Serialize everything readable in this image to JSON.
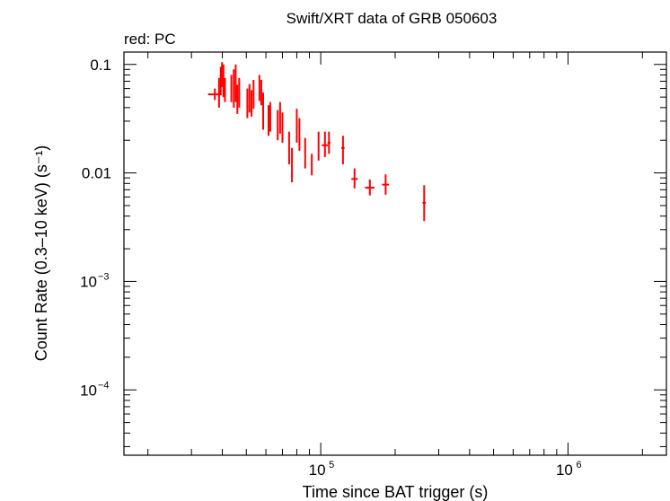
{
  "chart_data": {
    "type": "scatter",
    "title": "Swift/XRT data of GRB 050603",
    "subtitle": "red: PC",
    "xlabel": "Time since BAT trigger (s)",
    "ylabel": "Count Rate (0.3–10 keV) (s⁻¹)",
    "xscale": "log",
    "yscale": "log",
    "xlim": [
      16000,
      2500000
    ],
    "ylim": [
      2.5e-05,
      0.13
    ],
    "grid": false,
    "series_color": "#ff0000",
    "x_ticks": [
      {
        "base": "10",
        "exp": "5",
        "value": 100000
      },
      {
        "base": "10",
        "exp": "6",
        "value": 1000000
      }
    ],
    "y_ticks": [
      {
        "label": "0.1",
        "base": "",
        "exp": "",
        "value": 0.1
      },
      {
        "label": "0.01",
        "base": "",
        "exp": "",
        "value": 0.01
      },
      {
        "label": "",
        "base": "10",
        "exp": "−3",
        "value": 0.001
      },
      {
        "label": "",
        "base": "10",
        "exp": "−4",
        "value": 0.0001
      }
    ],
    "series": [
      {
        "name": "PC",
        "points": [
          {
            "x": 37300,
            "y": 0.053,
            "xlo": 35000,
            "xhi": 39200,
            "ylo": 0.047,
            "yhi": 0.06
          },
          {
            "x": 38800,
            "y": 0.055,
            "xlo": 38500,
            "xhi": 39100,
            "ylo": 0.04,
            "yhi": 0.075
          },
          {
            "x": 39400,
            "y": 0.07,
            "xlo": 39200,
            "xhi": 39600,
            "ylo": 0.052,
            "yhi": 0.095
          },
          {
            "x": 39900,
            "y": 0.085,
            "xlo": 39700,
            "xhi": 40100,
            "ylo": 0.062,
            "yhi": 0.105
          },
          {
            "x": 40400,
            "y": 0.065,
            "xlo": 40200,
            "xhi": 40600,
            "ylo": 0.05,
            "yhi": 0.1
          },
          {
            "x": 41000,
            "y": 0.058,
            "xlo": 40800,
            "xhi": 41200,
            "ylo": 0.045,
            "yhi": 0.075
          },
          {
            "x": 43500,
            "y": 0.06,
            "xlo": 43200,
            "xhi": 43800,
            "ylo": 0.045,
            "yhi": 0.08
          },
          {
            "x": 44500,
            "y": 0.055,
            "xlo": 44200,
            "xhi": 44800,
            "ylo": 0.04,
            "yhi": 0.09
          },
          {
            "x": 45300,
            "y": 0.062,
            "xlo": 45000,
            "xhi": 45600,
            "ylo": 0.045,
            "yhi": 0.1
          },
          {
            "x": 46000,
            "y": 0.048,
            "xlo": 45700,
            "xhi": 46300,
            "ylo": 0.035,
            "yhi": 0.065
          },
          {
            "x": 46800,
            "y": 0.055,
            "xlo": 46500,
            "xhi": 47100,
            "ylo": 0.04,
            "yhi": 0.075
          },
          {
            "x": 50500,
            "y": 0.042,
            "xlo": 50200,
            "xhi": 50800,
            "ylo": 0.032,
            "yhi": 0.06
          },
          {
            "x": 51500,
            "y": 0.048,
            "xlo": 51200,
            "xhi": 51800,
            "ylo": 0.036,
            "yhi": 0.066
          },
          {
            "x": 52500,
            "y": 0.044,
            "xlo": 52200,
            "xhi": 52800,
            "ylo": 0.033,
            "yhi": 0.058
          },
          {
            "x": 53500,
            "y": 0.052,
            "xlo": 53200,
            "xhi": 53800,
            "ylo": 0.039,
            "yhi": 0.072
          },
          {
            "x": 56500,
            "y": 0.06,
            "xlo": 56200,
            "xhi": 56800,
            "ylo": 0.046,
            "yhi": 0.08
          },
          {
            "x": 57500,
            "y": 0.055,
            "xlo": 57200,
            "xhi": 57800,
            "ylo": 0.042,
            "yhi": 0.072
          },
          {
            "x": 58500,
            "y": 0.04,
            "xlo": 58200,
            "xhi": 58800,
            "ylo": 0.025,
            "yhi": 0.055
          },
          {
            "x": 61500,
            "y": 0.03,
            "xlo": 61200,
            "xhi": 61800,
            "ylo": 0.022,
            "yhi": 0.042
          },
          {
            "x": 62500,
            "y": 0.033,
            "xlo": 62200,
            "xhi": 62800,
            "ylo": 0.024,
            "yhi": 0.045
          },
          {
            "x": 67000,
            "y": 0.028,
            "xlo": 66700,
            "xhi": 67300,
            "ylo": 0.02,
            "yhi": 0.038
          },
          {
            "x": 68500,
            "y": 0.032,
            "xlo": 68200,
            "xhi": 68800,
            "ylo": 0.023,
            "yhi": 0.045
          },
          {
            "x": 70000,
            "y": 0.026,
            "xlo": 69700,
            "xhi": 70300,
            "ylo": 0.019,
            "yhi": 0.036
          },
          {
            "x": 74500,
            "y": 0.017,
            "xlo": 74200,
            "xhi": 74800,
            "ylo": 0.012,
            "yhi": 0.024
          },
          {
            "x": 76500,
            "y": 0.012,
            "xlo": 76100,
            "xhi": 76900,
            "ylo": 0.0082,
            "yhi": 0.017
          },
          {
            "x": 80000,
            "y": 0.027,
            "xlo": 79600,
            "xhi": 80400,
            "ylo": 0.019,
            "yhi": 0.039
          },
          {
            "x": 82000,
            "y": 0.023,
            "xlo": 81600,
            "xhi": 82400,
            "ylo": 0.016,
            "yhi": 0.032
          },
          {
            "x": 86500,
            "y": 0.015,
            "xlo": 86100,
            "xhi": 86900,
            "ylo": 0.011,
            "yhi": 0.021
          },
          {
            "x": 92000,
            "y": 0.012,
            "xlo": 91500,
            "xhi": 92500,
            "ylo": 0.0095,
            "yhi": 0.015
          },
          {
            "x": 98000,
            "y": 0.017,
            "xlo": 97500,
            "xhi": 98500,
            "ylo": 0.013,
            "yhi": 0.024
          },
          {
            "x": 104000,
            "y": 0.018,
            "xlo": 101000,
            "xhi": 107000,
            "ylo": 0.014,
            "yhi": 0.024
          },
          {
            "x": 108000,
            "y": 0.019,
            "xlo": 106500,
            "xhi": 109500,
            "ylo": 0.015,
            "yhi": 0.024
          },
          {
            "x": 123000,
            "y": 0.017,
            "xlo": 121000,
            "xhi": 125000,
            "ylo": 0.012,
            "yhi": 0.022
          },
          {
            "x": 137000,
            "y": 0.0088,
            "xlo": 133000,
            "xhi": 141000,
            "ylo": 0.0072,
            "yhi": 0.011
          },
          {
            "x": 158000,
            "y": 0.0073,
            "xlo": 151000,
            "xhi": 165000,
            "ylo": 0.0062,
            "yhi": 0.0087
          },
          {
            "x": 183000,
            "y": 0.0078,
            "xlo": 177000,
            "xhi": 189000,
            "ylo": 0.0063,
            "yhi": 0.0097
          },
          {
            "x": 262000,
            "y": 0.0053,
            "xlo": 258000,
            "xhi": 266000,
            "ylo": 0.0036,
            "yhi": 0.0077
          }
        ]
      }
    ]
  }
}
